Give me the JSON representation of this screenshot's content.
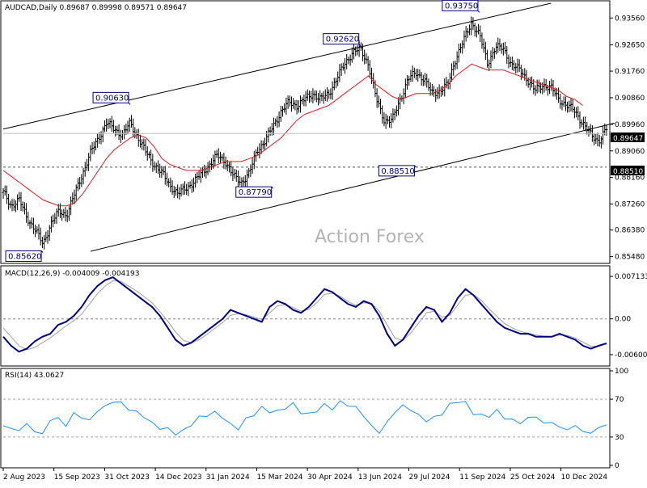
{
  "chart_data": [
    {
      "type": "ohlc",
      "symbol_line": "AUDCAD,Daily  0.89687 0.89998 0.89571 0.89647",
      "y_ticks": [
        "0.93560",
        "0.92650",
        "0.91760",
        "0.90860",
        "0.89960",
        "0.89060",
        "0.88160",
        "0.87260",
        "0.86380",
        "0.85480"
      ],
      "ylim": [
        0.8536,
        0.9406
      ],
      "x_dates": [
        "2 Aug 2023",
        "15 Sep 2023",
        "31 Oct 2023",
        "14 Dec 2023",
        "31 Jan 2024",
        "15 Mar 2024",
        "30 Apr 2024",
        "13 Jun 2024",
        "29 Jul 2024",
        "11 Sep 2024",
        "25 Oct 2024",
        "10 Dec 2024"
      ],
      "close_path": [
        [
          0,
          0.8765
        ],
        [
          1,
          0.872
        ],
        [
          2,
          0.874
        ],
        [
          3,
          0.868
        ],
        [
          4,
          0.864
        ],
        [
          5,
          0.859
        ],
        [
          6,
          0.866
        ],
        [
          7,
          0.87
        ],
        [
          8,
          0.869
        ],
        [
          9,
          0.876
        ],
        [
          10,
          0.883
        ],
        [
          11,
          0.89
        ],
        [
          12,
          0.895
        ],
        [
          13,
          0.9
        ],
        [
          14,
          0.898
        ],
        [
          15,
          0.896
        ],
        [
          16,
          0.9
        ],
        [
          17,
          0.895
        ],
        [
          18,
          0.89
        ],
        [
          19,
          0.886
        ],
        [
          20,
          0.883
        ],
        [
          21,
          0.879
        ],
        [
          22,
          0.876
        ],
        [
          23,
          0.878
        ],
        [
          24,
          0.88
        ],
        [
          25,
          0.883
        ],
        [
          26,
          0.886
        ],
        [
          27,
          0.889
        ],
        [
          28,
          0.887
        ],
        [
          29,
          0.882
        ],
        [
          30,
          0.88
        ],
        [
          31,
          0.883
        ],
        [
          32,
          0.891
        ],
        [
          33,
          0.894
        ],
        [
          34,
          0.899
        ],
        [
          35,
          0.904
        ],
        [
          36,
          0.907
        ],
        [
          37,
          0.906
        ],
        [
          38,
          0.908
        ],
        [
          39,
          0.91
        ],
        [
          40,
          0.908
        ],
        [
          41,
          0.91
        ],
        [
          42,
          0.915
        ],
        [
          43,
          0.92
        ],
        [
          44,
          0.924
        ],
        [
          45,
          0.925
        ],
        [
          46,
          0.92
        ],
        [
          47,
          0.908
        ],
        [
          48,
          0.901
        ],
        [
          49,
          0.901
        ],
        [
          50,
          0.908
        ],
        [
          51,
          0.915
        ],
        [
          52,
          0.917
        ],
        [
          53,
          0.915
        ],
        [
          54,
          0.91
        ],
        [
          55,
          0.911
        ],
        [
          56,
          0.913
        ],
        [
          57,
          0.922
        ],
        [
          58,
          0.928
        ],
        [
          59,
          0.934
        ],
        [
          60,
          0.93
        ],
        [
          61,
          0.92
        ],
        [
          62,
          0.926
        ],
        [
          63,
          0.925
        ],
        [
          64,
          0.92
        ],
        [
          65,
          0.918
        ],
        [
          66,
          0.915
        ],
        [
          67,
          0.911
        ],
        [
          68,
          0.913
        ],
        [
          69,
          0.912
        ],
        [
          70,
          0.908
        ],
        [
          71,
          0.906
        ],
        [
          72,
          0.904
        ],
        [
          73,
          0.9
        ],
        [
          74,
          0.896
        ],
        [
          75,
          0.894
        ],
        [
          76,
          0.898
        ]
      ],
      "ma_path": [
        [
          0,
          0.884
        ],
        [
          1,
          0.882
        ],
        [
          2,
          0.88
        ],
        [
          3,
          0.878
        ],
        [
          4,
          0.876
        ],
        [
          5,
          0.874
        ],
        [
          6,
          0.873
        ],
        [
          7,
          0.872
        ],
        [
          8,
          0.872
        ],
        [
          9,
          0.873
        ],
        [
          10,
          0.876
        ],
        [
          11,
          0.88
        ],
        [
          12,
          0.884
        ],
        [
          13,
          0.888
        ],
        [
          14,
          0.891
        ],
        [
          15,
          0.893
        ],
        [
          16,
          0.895
        ],
        [
          17,
          0.896
        ],
        [
          18,
          0.895
        ],
        [
          19,
          0.892
        ],
        [
          20,
          0.888
        ],
        [
          21,
          0.886
        ],
        [
          22,
          0.885
        ],
        [
          23,
          0.884
        ],
        [
          24,
          0.884
        ],
        [
          25,
          0.884
        ],
        [
          26,
          0.885
        ],
        [
          27,
          0.886
        ],
        [
          28,
          0.887
        ],
        [
          29,
          0.887
        ],
        [
          30,
          0.887
        ],
        [
          31,
          0.888
        ],
        [
          32,
          0.889
        ],
        [
          33,
          0.891
        ],
        [
          34,
          0.893
        ],
        [
          35,
          0.895
        ],
        [
          36,
          0.898
        ],
        [
          37,
          0.901
        ],
        [
          38,
          0.903
        ],
        [
          39,
          0.904
        ],
        [
          40,
          0.905
        ],
        [
          41,
          0.906
        ],
        [
          42,
          0.908
        ],
        [
          43,
          0.91
        ],
        [
          44,
          0.912
        ],
        [
          45,
          0.914
        ],
        [
          46,
          0.916
        ],
        [
          47,
          0.913
        ],
        [
          48,
          0.911
        ],
        [
          49,
          0.909
        ],
        [
          50,
          0.908
        ],
        [
          51,
          0.909
        ],
        [
          52,
          0.91
        ],
        [
          53,
          0.91
        ],
        [
          54,
          0.91
        ],
        [
          55,
          0.911
        ],
        [
          56,
          0.913
        ],
        [
          57,
          0.916
        ],
        [
          58,
          0.918
        ],
        [
          59,
          0.92
        ],
        [
          60,
          0.919
        ],
        [
          61,
          0.918
        ],
        [
          62,
          0.918
        ],
        [
          63,
          0.918
        ],
        [
          64,
          0.917
        ],
        [
          65,
          0.916
        ],
        [
          66,
          0.915
        ],
        [
          67,
          0.914
        ],
        [
          68,
          0.913
        ],
        [
          69,
          0.912
        ],
        [
          70,
          0.911
        ],
        [
          71,
          0.909
        ],
        [
          72,
          0.908
        ],
        [
          73,
          0.906
        ]
      ],
      "channel_upper": [
        [
          0,
          0.898
        ],
        [
          69,
          0.9406
        ]
      ],
      "channel_lower": [
        [
          11,
          0.8566
        ],
        [
          77,
          0.9
        ]
      ],
      "horizontal_level": 0.8851,
      "current_price": "0.89647",
      "level_price": "0.88510",
      "callouts": [
        {
          "label": "0.85620",
          "value": 0.8562,
          "x": 5
        },
        {
          "label": "0.90630",
          "value": 0.9063,
          "x": 16
        },
        {
          "label": "0.87790",
          "value": 0.8779,
          "x": 34
        },
        {
          "label": "0.92620",
          "value": 0.9262,
          "x": 45
        },
        {
          "label": "0.88510",
          "value": 0.8851,
          "x": 52
        },
        {
          "label": "0.93750",
          "value": 0.9375,
          "x": 60
        }
      ],
      "watermark": "Action Forex",
      "colors": {
        "price": "#000000",
        "ma": "#e11c1c",
        "channel": "#000000",
        "level": "#505050",
        "callout_border": "#000080",
        "callout_text": "#000080",
        "tag_bg": "#000000"
      }
    },
    {
      "type": "line",
      "title": "MACD(12,26,9) -0.004009 -0.004193",
      "y_ticks": [
        "0.007133",
        "0.00",
        "-0.006003"
      ],
      "tick_values": [
        0.007133,
        0.0,
        -0.006003
      ],
      "ylim": [
        -0.0075,
        0.0085
      ],
      "x_count": 78,
      "series": [
        {
          "name": "",
          "values": [
            -0.003,
            -0.0045,
            -0.0055,
            -0.005,
            -0.0038,
            -0.003,
            -0.0025,
            -0.001,
            -0.0005,
            0.0005,
            0.002,
            0.004,
            0.0055,
            0.0065,
            0.007,
            0.006,
            0.005,
            0.004,
            0.003,
            0.002,
            0.0005,
            -0.0015,
            -0.0035,
            -0.0045,
            -0.004,
            -0.003,
            -0.002,
            -0.001,
            0.0,
            0.0015,
            0.001,
            0.0005,
            0.0,
            -0.0005,
            0.002,
            0.003,
            0.0025,
            0.0015,
            0.001,
            0.002,
            0.0035,
            0.005,
            0.0045,
            0.0035,
            0.0025,
            0.002,
            0.003,
            0.0025,
            0.0005,
            -0.0025,
            -0.0045,
            -0.0035,
            -0.0015,
            0.0005,
            0.002,
            0.0015,
            -0.0005,
            0.001,
            0.0035,
            0.005,
            0.004,
            0.0025,
            0.001,
            -0.0005,
            -0.0015,
            -0.002,
            -0.0025,
            -0.0025,
            -0.003,
            -0.003,
            -0.003,
            -0.0025,
            -0.003,
            -0.0035,
            -0.0045,
            -0.005,
            -0.0045,
            -0.0041
          ]
        },
        {
          "name": "",
          "values": [
            -0.0015,
            -0.003,
            -0.0045,
            -0.0052,
            -0.0048,
            -0.004,
            -0.0032,
            -0.0022,
            -0.0012,
            -0.0003,
            0.0008,
            0.0025,
            0.0042,
            0.0055,
            0.0064,
            0.0063,
            0.0055,
            0.0047,
            0.0037,
            0.0027,
            0.0012,
            -0.0004,
            -0.0022,
            -0.0036,
            -0.004,
            -0.0035,
            -0.0026,
            -0.0016,
            -0.0006,
            0.0006,
            0.0009,
            0.0007,
            0.0003,
            -0.0001,
            0.001,
            0.0022,
            0.0024,
            0.0019,
            0.0013,
            0.0016,
            0.0027,
            0.0041,
            0.0043,
            0.0038,
            0.0029,
            0.0023,
            0.0027,
            0.0026,
            0.0013,
            -0.001,
            -0.0032,
            -0.0036,
            -0.0024,
            -0.0007,
            0.001,
            0.0013,
            0.0003,
            0.0006,
            0.0023,
            0.004,
            0.0041,
            0.0031,
            0.0017,
            0.0004,
            -0.0008,
            -0.0015,
            -0.0021,
            -0.0024,
            -0.0027,
            -0.0029,
            -0.003,
            -0.0027,
            -0.0028,
            -0.0032,
            -0.0039,
            -0.0046,
            -0.0046,
            -0.0042
          ]
        }
      ],
      "colors": {
        "macd": "#000080",
        "signal": "#a0a0a0",
        "zero": "#808080"
      }
    },
    {
      "type": "line",
      "title": "RSI(14) 43.0627",
      "y_ticks": [
        "100",
        "70",
        "30",
        "0"
      ],
      "tick_values": [
        100,
        70,
        30,
        0
      ],
      "ylim": [
        0,
        100
      ],
      "levels": [
        70,
        30
      ],
      "x_count": 78,
      "series": [
        {
          "name": "",
          "values": [
            42,
            39,
            37,
            44,
            36,
            33,
            48,
            50,
            42,
            55,
            51,
            47,
            58,
            62,
            68,
            66,
            60,
            56,
            52,
            44,
            40,
            38,
            34,
            36,
            44,
            50,
            54,
            55,
            52,
            42,
            40,
            48,
            55,
            60,
            58,
            56,
            62,
            64,
            57,
            53,
            59,
            63,
            61,
            66,
            65,
            60,
            54,
            40,
            36,
            44,
            58,
            62,
            60,
            52,
            48,
            50,
            55,
            64,
            68,
            66,
            55,
            53,
            52,
            58,
            50,
            48,
            45,
            50,
            52,
            44,
            46,
            40,
            38,
            42,
            36,
            34,
            40,
            43
          ]
        }
      ],
      "colors": {
        "rsi": "#1e90ff",
        "level": "#a0a0a0"
      }
    }
  ]
}
